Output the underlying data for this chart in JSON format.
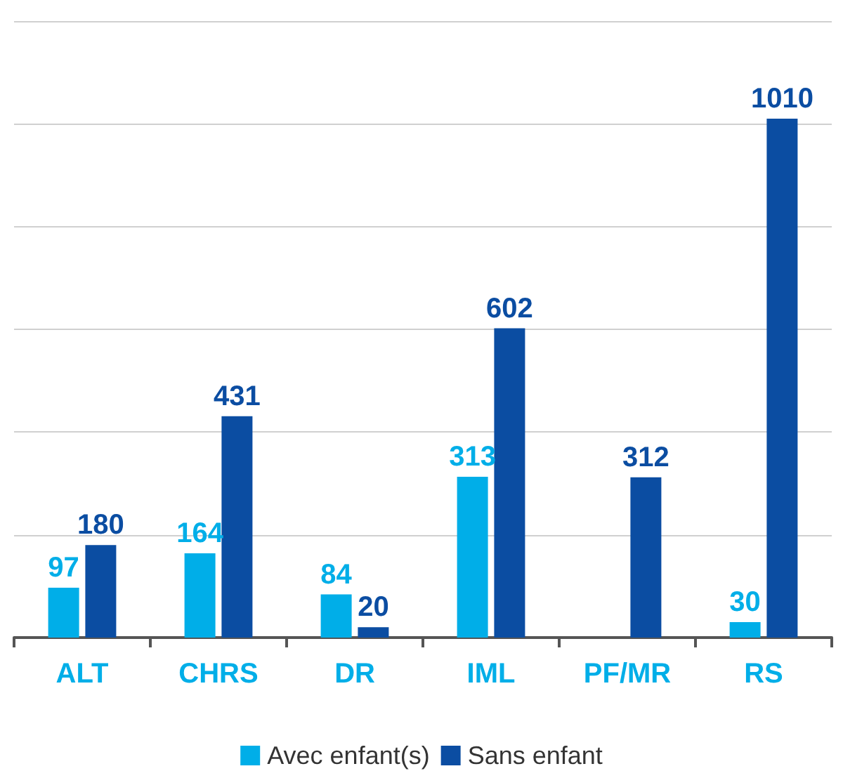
{
  "chart_data": {
    "type": "bar",
    "categories": [
      "ALT",
      "CHRS",
      "DR",
      "IML",
      "PF/MR",
      "RS"
    ],
    "series": [
      {
        "name": "Avec enfant(s)",
        "color": "#00aee8",
        "values": [
          97,
          164,
          84,
          313,
          null,
          30
        ]
      },
      {
        "name": "Sans enfant",
        "color": "#0b4da2",
        "values": [
          180,
          431,
          20,
          602,
          312,
          1010
        ]
      }
    ],
    "ylim": [
      0,
      1200
    ],
    "yticks": [
      {
        "value": 0,
        "label": null
      },
      {
        "value": 200,
        "label": null
      },
      {
        "value": 400,
        "label": null
      },
      {
        "value": 600,
        "label": null
      },
      {
        "value": 800,
        "label": null
      },
      {
        "value": 1000,
        "label": null
      },
      {
        "value": 1200,
        "label": null
      }
    ],
    "grid": "y",
    "legend": "bottom",
    "data_labels": true,
    "tick_labels": "x"
  }
}
